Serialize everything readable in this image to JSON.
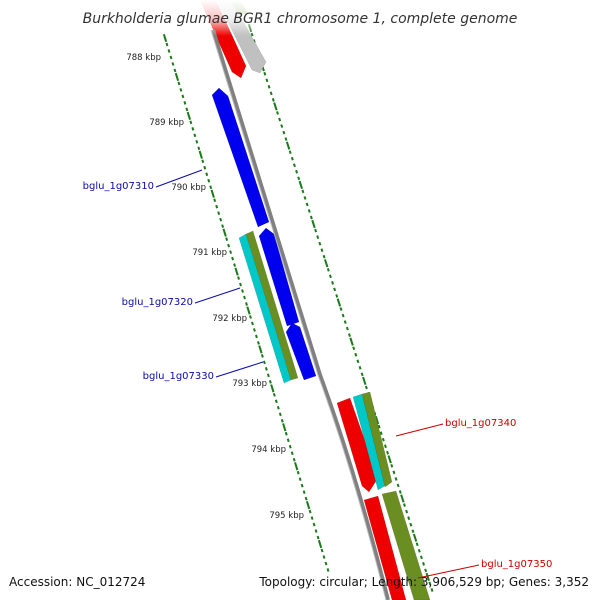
{
  "title": "Burkholderia glumae BGR1 chromosome 1, complete genome",
  "footer": {
    "accession": "Accession: NC_012724",
    "summary": "Topology: circular; Length: 3,906,529 bp; Genes: 3,352"
  },
  "scale": {
    "unit": "kbp",
    "ticks": [
      "788 kbp",
      "789 kbp",
      "790 kbp",
      "791 kbp",
      "792 kbp",
      "793 kbp",
      "794 kbp",
      "795 kbp"
    ]
  },
  "genes": [
    {
      "id": "bglu_1g07310",
      "strand": "minus"
    },
    {
      "id": "bglu_1g07320",
      "strand": "minus"
    },
    {
      "id": "bglu_1g07330",
      "strand": "minus"
    },
    {
      "id": "bglu_1g07340",
      "strand": "plus"
    },
    {
      "id": "bglu_1g07350",
      "strand": "plus"
    }
  ],
  "colors": {
    "cds": "#0000ee",
    "rrna": "#ee0000",
    "trna": "#00c8c8",
    "gene": "#6b8e23",
    "other": "#c0c0c0",
    "backbone": "#808080",
    "ticks": "#1a7a1a",
    "label_minus": "#0a0aa8",
    "label_plus": "#cc0000"
  }
}
